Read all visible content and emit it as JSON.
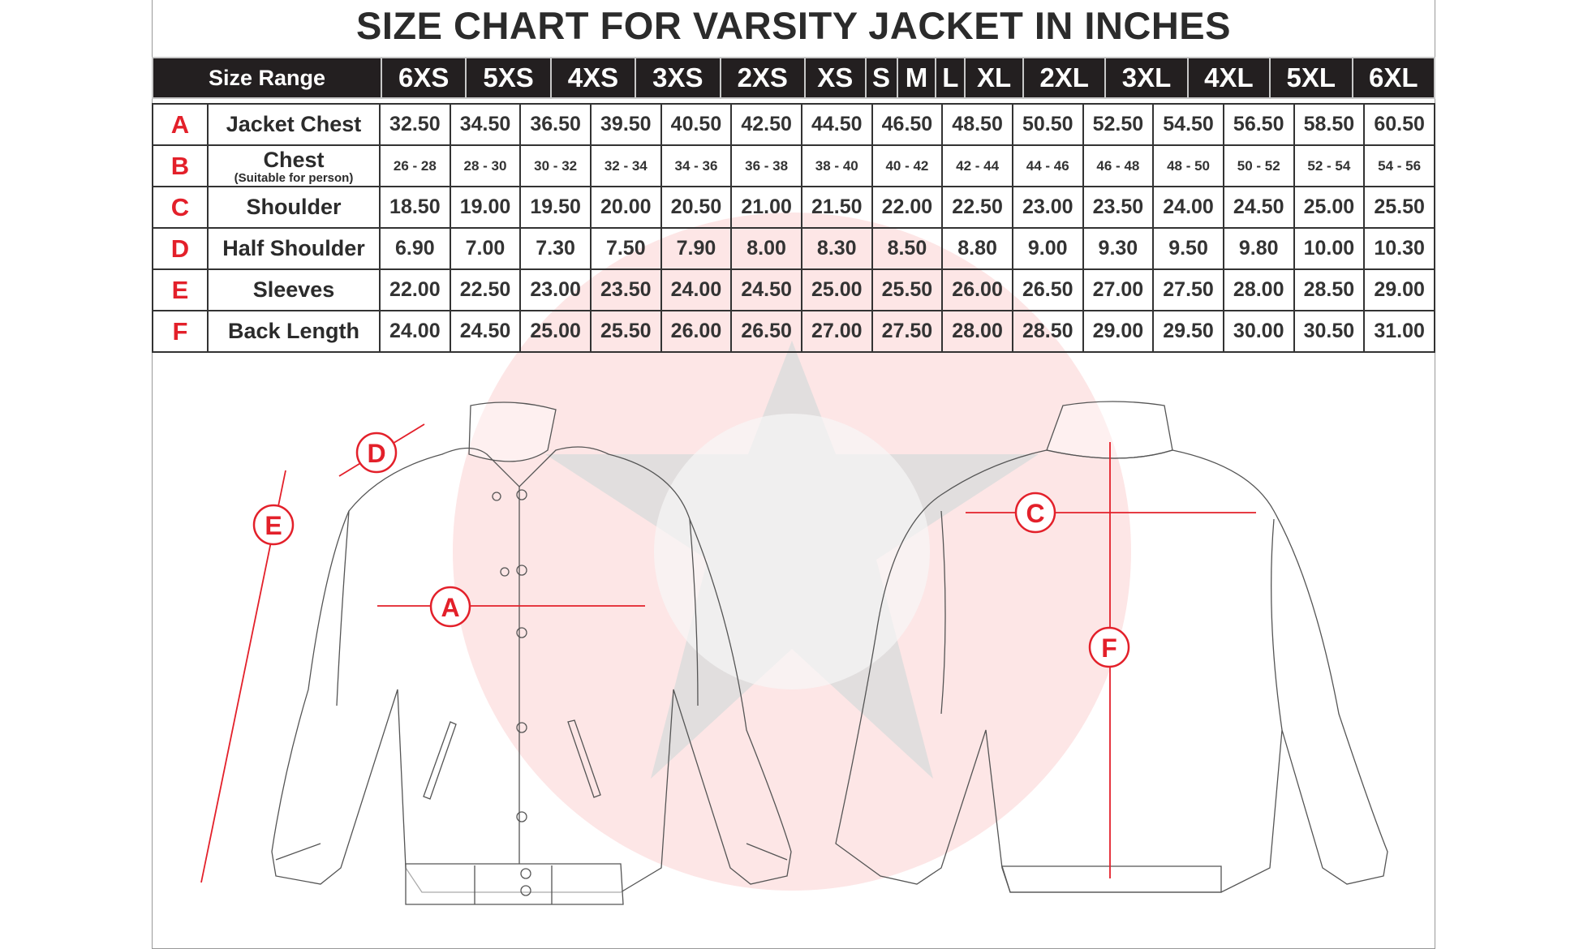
{
  "title": "SIZE CHART FOR VARSITY JACKET IN INCHES",
  "header": {
    "size_range_label": "Size Range",
    "sizes": [
      "6XS",
      "5XS",
      "4XS",
      "3XS",
      "2XS",
      "XS",
      "S",
      "M",
      "L",
      "XL",
      "2XL",
      "3XL",
      "4XL",
      "5XL",
      "6XL"
    ]
  },
  "rows": [
    {
      "letter": "A",
      "label": "Jacket Chest",
      "sub": "",
      "values": [
        "32.50",
        "34.50",
        "36.50",
        "39.50",
        "40.50",
        "42.50",
        "44.50",
        "46.50",
        "48.50",
        "50.50",
        "52.50",
        "54.50",
        "56.50",
        "58.50",
        "60.50"
      ]
    },
    {
      "letter": "B",
      "label": "Chest",
      "sub": "(Suitable for person)",
      "values": [
        "26 - 28",
        "28 - 30",
        "30 - 32",
        "32 - 34",
        "34 - 36",
        "36 - 38",
        "38 - 40",
        "40 - 42",
        "42 - 44",
        "44 - 46",
        "46 - 48",
        "48 - 50",
        "50 - 52",
        "52 - 54",
        "54 - 56"
      ]
    },
    {
      "letter": "C",
      "label": "Shoulder",
      "sub": "",
      "values": [
        "18.50",
        "19.00",
        "19.50",
        "20.00",
        "20.50",
        "21.00",
        "21.50",
        "22.00",
        "22.50",
        "23.00",
        "23.50",
        "24.00",
        "24.50",
        "25.00",
        "25.50"
      ]
    },
    {
      "letter": "D",
      "label": "Half Shoulder",
      "sub": "",
      "values": [
        "6.90",
        "7.00",
        "7.30",
        "7.50",
        "7.90",
        "8.00",
        "8.30",
        "8.50",
        "8.80",
        "9.00",
        "9.30",
        "9.50",
        "9.80",
        "10.00",
        "10.30"
      ]
    },
    {
      "letter": "E",
      "label": "Sleeves",
      "sub": "",
      "values": [
        "22.00",
        "22.50",
        "23.00",
        "23.50",
        "24.00",
        "24.50",
        "25.00",
        "25.50",
        "26.00",
        "26.50",
        "27.00",
        "27.50",
        "28.00",
        "28.50",
        "29.00"
      ]
    },
    {
      "letter": "F",
      "label": "Back Length",
      "sub": "",
      "values": [
        "24.00",
        "24.50",
        "25.00",
        "25.50",
        "26.00",
        "26.50",
        "27.00",
        "27.50",
        "28.00",
        "28.50",
        "29.00",
        "29.50",
        "30.00",
        "30.50",
        "31.00"
      ]
    }
  ],
  "diagram_markers": {
    "a": "A",
    "c": "C",
    "d": "D",
    "e": "E",
    "f": "F"
  },
  "colors": {
    "accent_red": "#e3202a",
    "header_bg": "#231f20",
    "watermark_pink": "#fde3e3",
    "watermark_gray": "#d9d9d9"
  }
}
